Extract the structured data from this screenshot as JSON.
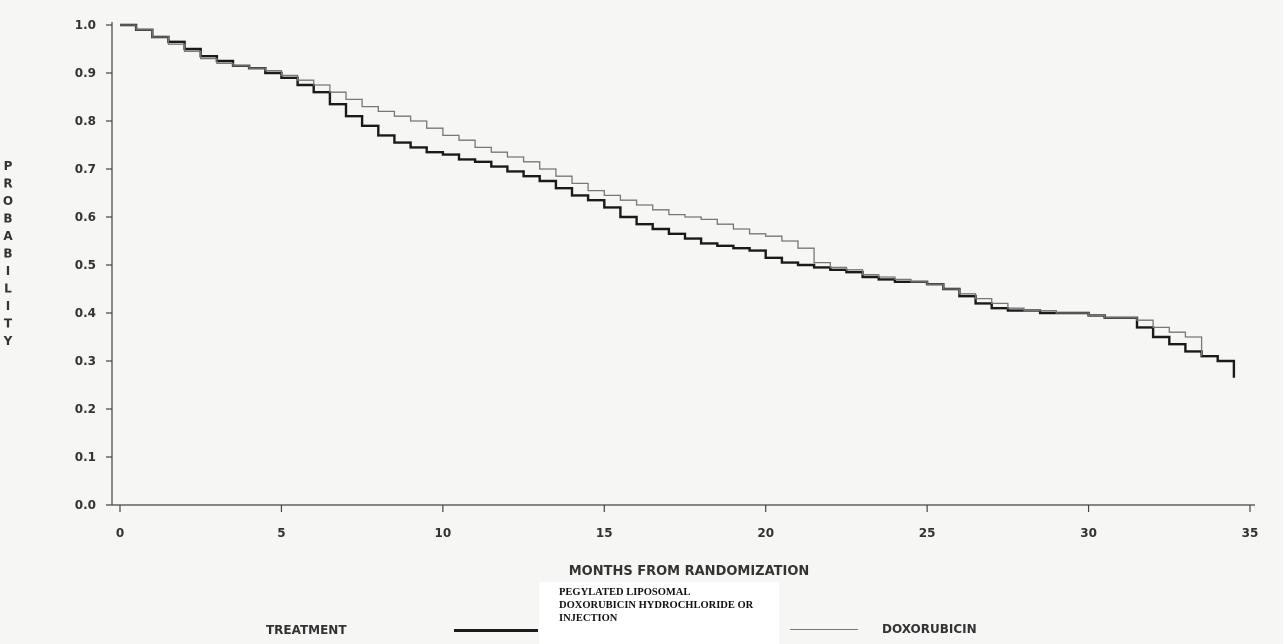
{
  "chart_data": {
    "type": "line",
    "title": "",
    "xlabel": "MONTHS FROM RANDOMIZATION",
    "ylabel": "PROBABILITY",
    "xlim": [
      0,
      35
    ],
    "ylim": [
      0.0,
      1.0
    ],
    "x_ticks": [
      "0",
      "5",
      "10",
      "15",
      "20",
      "25",
      "30",
      "35"
    ],
    "y_ticks": [
      "0.0",
      "0.1",
      "0.2",
      "0.3",
      "0.4",
      "0.5",
      "0.6",
      "0.7",
      "0.8",
      "0.9",
      "1.0"
    ],
    "grid": false,
    "legend_title": "TREATMENT",
    "series": [
      {
        "name": "PEGYLATED LIPOSOMAL DOXORUBICIN HYDROCHLORIDE OR INJECTION",
        "color": "#1a1a1a",
        "x": [
          0,
          0.5,
          1,
          1.5,
          2,
          2.5,
          3,
          3.5,
          4,
          4.5,
          5,
          5.5,
          6,
          6.5,
          7,
          7.5,
          8,
          8.5,
          9,
          9.5,
          10,
          10.5,
          11,
          11.5,
          12,
          12.5,
          13,
          13.5,
          14,
          14.5,
          15,
          15.5,
          16,
          16.5,
          17,
          17.5,
          18,
          18.5,
          19,
          19.5,
          20,
          20.5,
          21,
          21.5,
          22,
          22.5,
          23,
          23.5,
          24,
          24.5,
          25,
          25.5,
          26,
          26.5,
          27,
          27.5,
          28,
          28.5,
          29,
          29.5,
          30,
          30.5,
          31,
          31.5,
          32,
          32.5,
          33,
          33.5,
          34,
          34.5
        ],
        "y": [
          1.0,
          0.99,
          0.975,
          0.965,
          0.95,
          0.935,
          0.925,
          0.915,
          0.91,
          0.9,
          0.89,
          0.875,
          0.86,
          0.835,
          0.81,
          0.79,
          0.77,
          0.755,
          0.745,
          0.735,
          0.73,
          0.72,
          0.715,
          0.705,
          0.695,
          0.685,
          0.675,
          0.66,
          0.645,
          0.635,
          0.62,
          0.6,
          0.585,
          0.575,
          0.565,
          0.555,
          0.545,
          0.54,
          0.535,
          0.53,
          0.515,
          0.505,
          0.5,
          0.495,
          0.49,
          0.485,
          0.475,
          0.47,
          0.465,
          0.465,
          0.46,
          0.45,
          0.435,
          0.42,
          0.41,
          0.405,
          0.405,
          0.4,
          0.4,
          0.4,
          0.395,
          0.39,
          0.39,
          0.37,
          0.35,
          0.335,
          0.32,
          0.31,
          0.3,
          0.265
        ]
      },
      {
        "name": "DOXORUBICIN",
        "color": "#777777",
        "x": [
          0,
          0.5,
          1,
          1.5,
          2,
          2.5,
          3,
          3.5,
          4,
          4.5,
          5,
          5.5,
          6,
          6.5,
          7,
          7.5,
          8,
          8.5,
          9,
          9.5,
          10,
          10.5,
          11,
          11.5,
          12,
          12.5,
          13,
          13.5,
          14,
          14.5,
          15,
          15.5,
          16,
          16.5,
          17,
          17.5,
          18,
          18.5,
          19,
          19.5,
          20,
          20.5,
          21,
          21.5,
          22,
          22.5,
          23,
          23.5,
          24,
          24.5,
          25,
          25.5,
          26,
          26.5,
          27,
          27.5,
          28,
          28.5,
          29,
          29.5,
          30,
          30.5,
          31,
          31.5,
          32,
          32.5,
          33,
          33.5
        ],
        "y": [
          1.0,
          0.99,
          0.975,
          0.96,
          0.945,
          0.93,
          0.92,
          0.915,
          0.91,
          0.905,
          0.895,
          0.885,
          0.875,
          0.86,
          0.845,
          0.83,
          0.82,
          0.81,
          0.8,
          0.785,
          0.77,
          0.76,
          0.745,
          0.735,
          0.725,
          0.715,
          0.7,
          0.685,
          0.67,
          0.655,
          0.645,
          0.635,
          0.625,
          0.615,
          0.605,
          0.6,
          0.595,
          0.585,
          0.575,
          0.565,
          0.56,
          0.55,
          0.535,
          0.505,
          0.495,
          0.49,
          0.48,
          0.475,
          0.47,
          0.465,
          0.46,
          0.45,
          0.44,
          0.43,
          0.42,
          0.41,
          0.405,
          0.405,
          0.4,
          0.4,
          0.395,
          0.39,
          0.39,
          0.385,
          0.37,
          0.36,
          0.35,
          0.31
        ]
      }
    ]
  }
}
